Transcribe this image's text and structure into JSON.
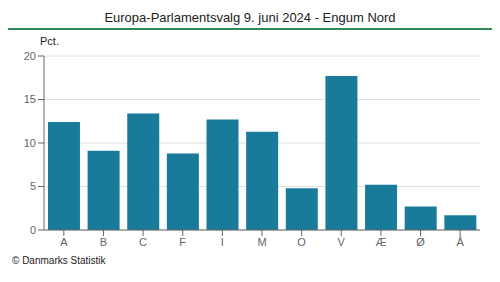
{
  "chart_data": {
    "type": "bar",
    "title": "Europa-Parlamentsvalg 9. juni 2024 - Engum Nord",
    "ylabel": "Pct.",
    "footer": "© Danmarks Statistik",
    "categories": [
      "A",
      "B",
      "C",
      "F",
      "I",
      "M",
      "O",
      "V",
      "Æ",
      "Ø",
      "Å"
    ],
    "values": [
      12.4,
      9.1,
      13.4,
      8.8,
      12.7,
      11.3,
      4.8,
      17.7,
      5.2,
      2.7,
      1.7
    ],
    "color": "#1a7a9a",
    "ylim": [
      0,
      20
    ],
    "yticks": [
      0,
      5,
      10,
      15,
      20
    ],
    "grid": true
  }
}
